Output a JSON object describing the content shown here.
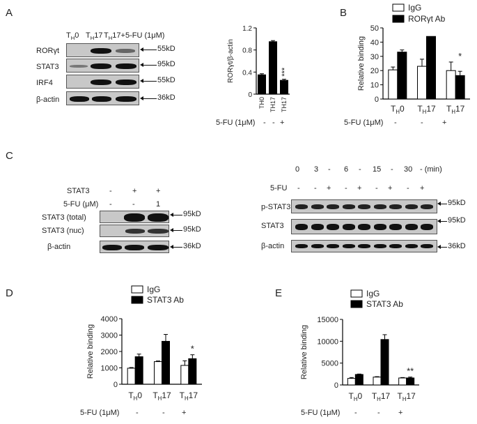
{
  "panels": {
    "a": "A",
    "b": "B",
    "c": "C",
    "d": "D",
    "e": "E"
  },
  "panel_a": {
    "lane_labels": [
      "TH0",
      "TH17",
      "TH17+5-FU (1μM)"
    ],
    "row_labels": [
      "RORγt",
      "STAT3",
      "IRF4",
      "β-actin"
    ],
    "size_labels": [
      "55kD",
      "95kD",
      "55kD",
      "36kD"
    ],
    "treatment_label": "5-FU (1μM)",
    "treatment_signs": [
      "-",
      "-",
      "+"
    ]
  },
  "panel_b": {
    "treatment_label": "5-FU (1μM)",
    "treatment_signs": [
      "-",
      "-",
      "+"
    ]
  },
  "panel_c_left": {
    "row_stat3": {
      "label": "STAT3",
      "values": [
        "-",
        "+",
        "+"
      ]
    },
    "row_5fu": {
      "label": "5-FU (μM)",
      "values": [
        "-",
        "-",
        "1"
      ]
    },
    "blot_labels": [
      "STAT3 (total)",
      "STAT3 (nuc)",
      "β-actin"
    ],
    "size_labels": [
      "95kD",
      "95kD",
      "36kD"
    ]
  },
  "panel_c_right": {
    "time_values": [
      "0",
      "3",
      "-",
      "6",
      "-",
      "15",
      "-",
      "30",
      "- (min)"
    ],
    "fu_label": "5-FU",
    "fu_signs": [
      "-",
      "-",
      "+",
      "-",
      "+",
      "-",
      "+",
      "-",
      "+"
    ],
    "blot_labels": [
      "p-STAT3",
      "STAT3",
      "β-actin"
    ],
    "size_labels": [
      "95kD",
      "95kD",
      "36kD"
    ]
  },
  "panel_d": {
    "treatment_label": "5-FU (1μM)",
    "treatment_signs": [
      "-",
      "-",
      "+"
    ]
  },
  "panel_e": {
    "treatment_label": "5-FU (1μM)",
    "treatment_signs": [
      "-",
      "-",
      "+"
    ]
  },
  "chart_data": [
    {
      "id": "A-quant",
      "type": "bar",
      "ylabel": "RORγt/β-actin",
      "ylim": [
        0,
        1.2
      ],
      "yticks": [
        0,
        0.4,
        0.8,
        1.2
      ],
      "categories": [
        "TH0",
        "TH17",
        "TH17"
      ],
      "values": [
        0.35,
        0.95,
        0.25
      ],
      "errors": [
        0.02,
        0.02,
        0.02
      ],
      "annotations": [
        {
          "category_index": 2,
          "text": "***"
        }
      ],
      "colors": [
        "#000000",
        "#000000",
        "#000000"
      ]
    },
    {
      "id": "B",
      "type": "bar",
      "ylabel": "Relative binding",
      "ylim": [
        0,
        50
      ],
      "yticks": [
        0,
        10,
        20,
        30,
        40,
        50
      ],
      "categories": [
        "TH0",
        "TH17",
        "TH17"
      ],
      "series": [
        {
          "name": "IgG",
          "color": "#ffffff",
          "values": [
            20.5,
            23,
            20
          ],
          "errors": [
            2,
            5,
            6
          ]
        },
        {
          "name": "RORγt Ab",
          "color": "#000000",
          "values": [
            33,
            44,
            16.5
          ],
          "errors": [
            1.5,
            0,
            3
          ]
        }
      ],
      "annotations": [
        {
          "category_index": 2,
          "text": "*"
        }
      ]
    },
    {
      "id": "D",
      "type": "bar",
      "ylabel": "Relative binding",
      "ylim": [
        0,
        4000
      ],
      "yticks": [
        0,
        1000,
        2000,
        3000,
        4000
      ],
      "categories": [
        "TH0",
        "TH17",
        "TH17"
      ],
      "series": [
        {
          "name": "IgG",
          "color": "#ffffff",
          "values": [
            980,
            1380,
            1150
          ],
          "errors": [
            40,
            40,
            280
          ]
        },
        {
          "name": "STAT3 Ab",
          "color": "#000000",
          "values": [
            1680,
            2620,
            1560
          ],
          "errors": [
            160,
            420,
            240
          ]
        }
      ],
      "annotations": [
        {
          "category_index": 2,
          "text": "*"
        }
      ]
    },
    {
      "id": "E",
      "type": "bar",
      "ylabel": "Relative binding",
      "ylim": [
        0,
        15000
      ],
      "yticks": [
        0,
        5000,
        10000,
        15000
      ],
      "categories": [
        "TH0",
        "TH17",
        "TH17"
      ],
      "series": [
        {
          "name": "IgG",
          "color": "#ffffff",
          "values": [
            1500,
            1800,
            1600
          ],
          "errors": [
            200,
            100,
            100
          ]
        },
        {
          "name": "STAT3 Ab",
          "color": "#000000",
          "values": [
            2400,
            10400,
            1600
          ],
          "errors": [
            100,
            1100,
            200
          ]
        }
      ],
      "annotations": [
        {
          "category_index": 2,
          "text": "**"
        }
      ]
    }
  ]
}
